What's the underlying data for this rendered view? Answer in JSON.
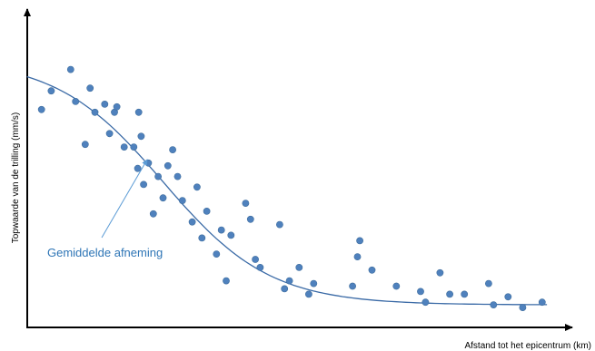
{
  "chart_data": {
    "type": "scatter",
    "title": "",
    "xlabel": "Afstand tot het epicentrum (km)",
    "ylabel": "Topwaarde van de trilling (mm/s)",
    "ticks": "none",
    "grid": false,
    "legend": "none",
    "xlim": [
      0,
      100
    ],
    "ylim": [
      0,
      100
    ],
    "points": [
      [
        2,
        76
      ],
      [
        4,
        83
      ],
      [
        8,
        91
      ],
      [
        9,
        79
      ],
      [
        11,
        63
      ],
      [
        12,
        84
      ],
      [
        13,
        75
      ],
      [
        15,
        78
      ],
      [
        16,
        67
      ],
      [
        17,
        75
      ],
      [
        17.5,
        77
      ],
      [
        19,
        62
      ],
      [
        21,
        62
      ],
      [
        22,
        75
      ],
      [
        22.5,
        66
      ],
      [
        21.8,
        54
      ],
      [
        23,
        48
      ],
      [
        24,
        56
      ],
      [
        25,
        37
      ],
      [
        26,
        51
      ],
      [
        27,
        43
      ],
      [
        28,
        55
      ],
      [
        29,
        61
      ],
      [
        30,
        51
      ],
      [
        31,
        42
      ],
      [
        33,
        34
      ],
      [
        34,
        47
      ],
      [
        35,
        28
      ],
      [
        36,
        38
      ],
      [
        38,
        22
      ],
      [
        39,
        31
      ],
      [
        40,
        12
      ],
      [
        41,
        29
      ],
      [
        44,
        41
      ],
      [
        45,
        35
      ],
      [
        46,
        20
      ],
      [
        47,
        17
      ],
      [
        51,
        33
      ],
      [
        52,
        9
      ],
      [
        53,
        12
      ],
      [
        55,
        17
      ],
      [
        57,
        7
      ],
      [
        58,
        11
      ],
      [
        66,
        10
      ],
      [
        67,
        21
      ],
      [
        67.5,
        27
      ],
      [
        70,
        16
      ],
      [
        75,
        10
      ],
      [
        80,
        8
      ],
      [
        81,
        4
      ],
      [
        84,
        15
      ],
      [
        86,
        7
      ],
      [
        89,
        7
      ],
      [
        94,
        11
      ],
      [
        95,
        3
      ],
      [
        98,
        6
      ],
      [
        101,
        2
      ],
      [
        105,
        4
      ]
    ],
    "trend_label": "Gemiddelde afneming",
    "point_color": "#4f81bd",
    "trend_color": "#3a6aa6",
    "annotation_color": "#2e75b6"
  }
}
